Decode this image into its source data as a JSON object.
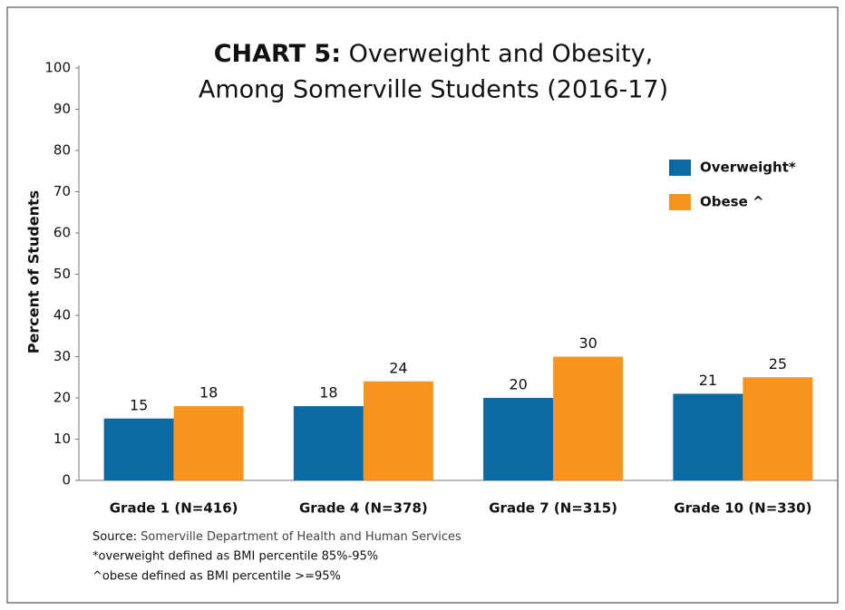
{
  "chart_data": {
    "type": "bar",
    "title_prefix": "CHART 5:",
    "title": "Overweight and Obesity,",
    "subtitle": "Among Somerville Students (2016-17)",
    "y_label": "Percent of Students",
    "categories": [
      "Grade 1 (N=416)",
      "Grade 4 (N=378)",
      "Grade 7 (N=315)",
      "Grade 10 (N=330)"
    ],
    "series": [
      {
        "name": "Overweight*",
        "color": "#0b6aa2",
        "values": [
          15,
          18,
          20,
          21
        ]
      },
      {
        "name": "Obese ^",
        "color": "#f7941d",
        "values": [
          18,
          24,
          30,
          25
        ]
      }
    ],
    "ylim": [
      0,
      100
    ],
    "yticks": [
      0,
      10,
      20,
      30,
      40,
      50,
      60,
      70,
      80,
      90,
      100
    ],
    "grid": false,
    "legend": "upper right",
    "source_label": "Source:",
    "source": "Somerville Department of Health and Human Services",
    "notes": [
      "*overweight defined as BMI percentile 85%-95%",
      "^obese defined as BMI percentile >=95%"
    ]
  }
}
